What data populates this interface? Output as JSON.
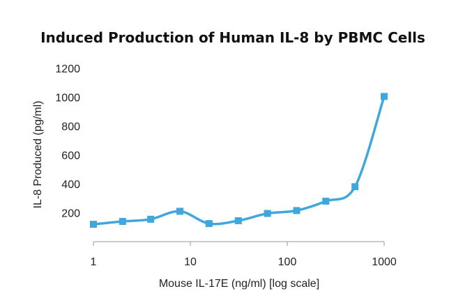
{
  "chart_data": {
    "type": "line",
    "title": "Induced Production of Human IL-8 by PBMC Cells",
    "xlabel": "Mouse IL-17E (ng/ml) [log scale]",
    "ylabel": "IL-8 Produced (pg/ml)",
    "x_scale": "log",
    "xlim": [
      1,
      1000
    ],
    "ylim": [
      0,
      1200
    ],
    "x_ticks": [
      1,
      10,
      100,
      1000
    ],
    "x_tick_labels": [
      "1",
      "10",
      "100",
      "1000"
    ],
    "y_ticks": [
      200,
      400,
      600,
      800,
      1000,
      1200
    ],
    "y_tick_labels": [
      "200",
      "400",
      "600",
      "800",
      "1000",
      "1200"
    ],
    "grid": false,
    "legend": "none",
    "line_color": "#3fa7dc",
    "series": [
      {
        "x": [
          1,
          2,
          3.9,
          7.8,
          15.6,
          31.25,
          62.5,
          125,
          250,
          500,
          1000
        ],
        "y": [
          120,
          140,
          155,
          210,
          125,
          145,
          195,
          215,
          280,
          380,
          1005
        ]
      }
    ]
  }
}
